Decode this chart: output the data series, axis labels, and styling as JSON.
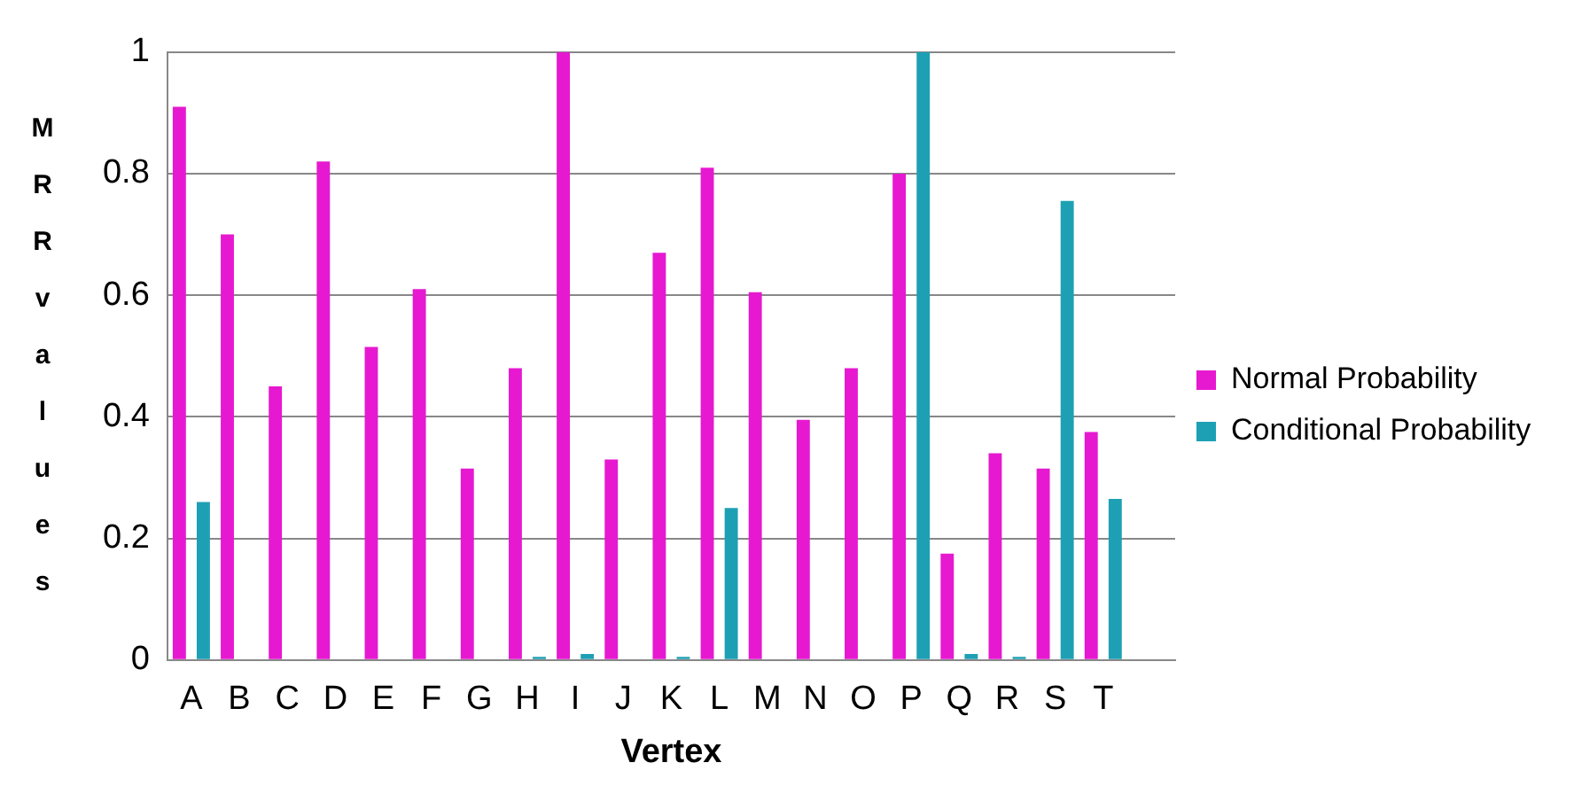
{
  "chart_data": {
    "type": "bar",
    "xlabel": "Vertex",
    "ylabel": "MRR values",
    "categories": [
      "A",
      "B",
      "C",
      "D",
      "E",
      "F",
      "G",
      "H",
      "I",
      "J",
      "K",
      "L",
      "M",
      "N",
      "O",
      "P",
      "Q",
      "R",
      "S",
      "T",
      null
    ],
    "series": [
      {
        "name": "Normal Probability",
        "color": "#e619d0",
        "values": [
          0.91,
          0.7,
          0.45,
          0.82,
          0.515,
          0.61,
          0.315,
          0.48,
          1,
          0.33,
          0.67,
          0.81,
          0.605,
          0.395,
          0.48,
          0.8,
          0.175,
          0.34,
          0.315,
          0.375,
          null
        ]
      },
      {
        "name": "Conditional Probability",
        "color": "#1ea0b4",
        "values": [
          0.26,
          0,
          0,
          0,
          0,
          0,
          0,
          0.005,
          0.01,
          0,
          0.005,
          0.25,
          0,
          0,
          0,
          1,
          0.01,
          0.005,
          0.755,
          0.265,
          null
        ]
      }
    ],
    "ylim": [
      0,
      1
    ],
    "yticks": [
      0,
      0.2,
      0.4,
      0.6,
      0.8,
      1
    ],
    "grid": "y",
    "legend": "right"
  }
}
